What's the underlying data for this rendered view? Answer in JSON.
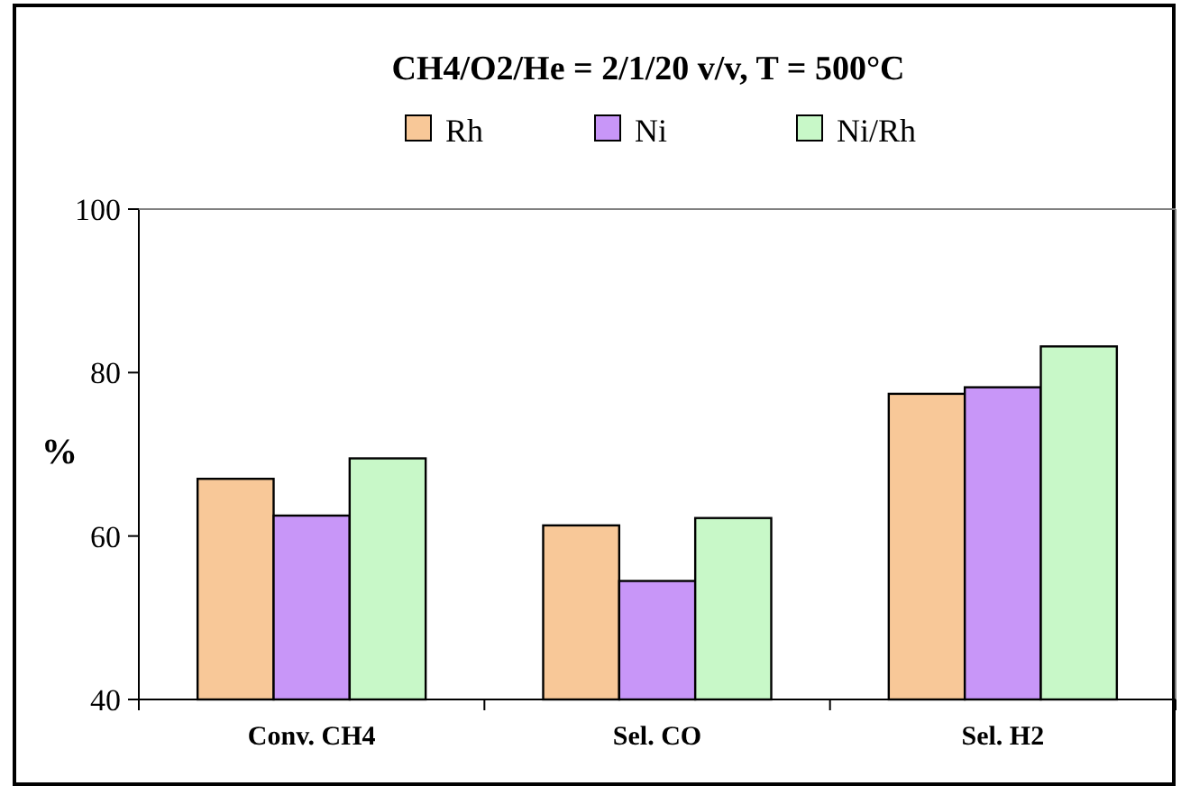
{
  "chart_data": {
    "type": "bar",
    "title": "CH4/O2/He = 2/1/20 v/v, T = 500°C",
    "ylabel": "%",
    "categories": [
      "Conv. CH4",
      "Sel. CO",
      "Sel. H2"
    ],
    "series": [
      {
        "name": "Rh",
        "color": "#f8c898",
        "values": [
          67.0,
          61.3,
          77.4
        ]
      },
      {
        "name": "Ni",
        "color": "#c896f8",
        "values": [
          62.5,
          54.5,
          78.2
        ]
      },
      {
        "name": "Ni/Rh",
        "color": "#c8f8c8",
        "values": [
          69.5,
          62.2,
          83.2
        ]
      }
    ],
    "ylim": [
      40,
      100
    ],
    "yticks": [
      40,
      60,
      80,
      100
    ],
    "grid": false,
    "legend": "top"
  }
}
